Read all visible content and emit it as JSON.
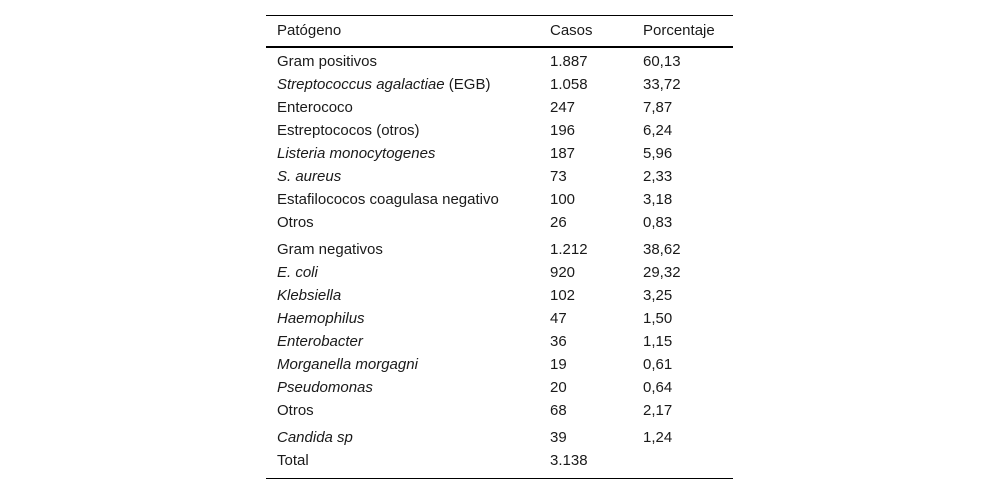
{
  "colors": {
    "background": "#ffffff",
    "text": "#1a1a1a",
    "rule": "#000000"
  },
  "table": {
    "columns": [
      "Patógeno",
      "Casos",
      "Porcentaje"
    ],
    "rows": [
      {
        "name": "Gram positivos",
        "suffix": "",
        "italic": false,
        "group_start": false,
        "casos": "1.887",
        "porcentaje": "60,13"
      },
      {
        "name": "Streptococcus agalactiae",
        "suffix": " (EGB)",
        "italic": true,
        "group_start": false,
        "casos": "1.058",
        "porcentaje": "33,72"
      },
      {
        "name": "Enterococo",
        "suffix": "",
        "italic": false,
        "group_start": false,
        "casos": "247",
        "porcentaje": "7,87"
      },
      {
        "name": "Estreptococos (otros)",
        "suffix": "",
        "italic": false,
        "group_start": false,
        "casos": "196",
        "porcentaje": "6,24"
      },
      {
        "name": "Listeria monocytogenes",
        "suffix": "",
        "italic": true,
        "group_start": false,
        "casos": "187",
        "porcentaje": "5,96"
      },
      {
        "name": "S. aureus",
        "suffix": "",
        "italic": true,
        "group_start": false,
        "casos": "73",
        "porcentaje": "2,33"
      },
      {
        "name": "Estafilococos coagulasa negativo",
        "suffix": "",
        "italic": false,
        "group_start": false,
        "casos": "100",
        "porcentaje": "3,18"
      },
      {
        "name": "Otros",
        "suffix": "",
        "italic": false,
        "group_start": false,
        "casos": "26",
        "porcentaje": "0,83"
      },
      {
        "name": "Gram negativos",
        "suffix": "",
        "italic": false,
        "group_start": true,
        "casos": "1.212",
        "porcentaje": "38,62"
      },
      {
        "name": "E. coli",
        "suffix": "",
        "italic": true,
        "group_start": false,
        "casos": "920",
        "porcentaje": "29,32"
      },
      {
        "name": "Klebsiella",
        "suffix": "",
        "italic": true,
        "group_start": false,
        "casos": "102",
        "porcentaje": "3,25"
      },
      {
        "name": "Haemophilus",
        "suffix": "",
        "italic": true,
        "group_start": false,
        "casos": "47",
        "porcentaje": "1,50"
      },
      {
        "name": "Enterobacter",
        "suffix": "",
        "italic": true,
        "group_start": false,
        "casos": "36",
        "porcentaje": "1,15"
      },
      {
        "name": "Morganella morgagni",
        "suffix": "",
        "italic": true,
        "group_start": false,
        "casos": "19",
        "porcentaje": "0,61"
      },
      {
        "name": "Pseudomonas",
        "suffix": "",
        "italic": true,
        "group_start": false,
        "casos": "20",
        "porcentaje": "0,64"
      },
      {
        "name": "Otros",
        "suffix": "",
        "italic": false,
        "group_start": false,
        "casos": "68",
        "porcentaje": "2,17"
      },
      {
        "name": "Candida sp",
        "suffix": "",
        "italic": true,
        "group_start": true,
        "casos": "39",
        "porcentaje": "1,24"
      },
      {
        "name": "Total",
        "suffix": "",
        "italic": false,
        "group_start": false,
        "casos": "3.138",
        "porcentaje": ""
      }
    ]
  }
}
